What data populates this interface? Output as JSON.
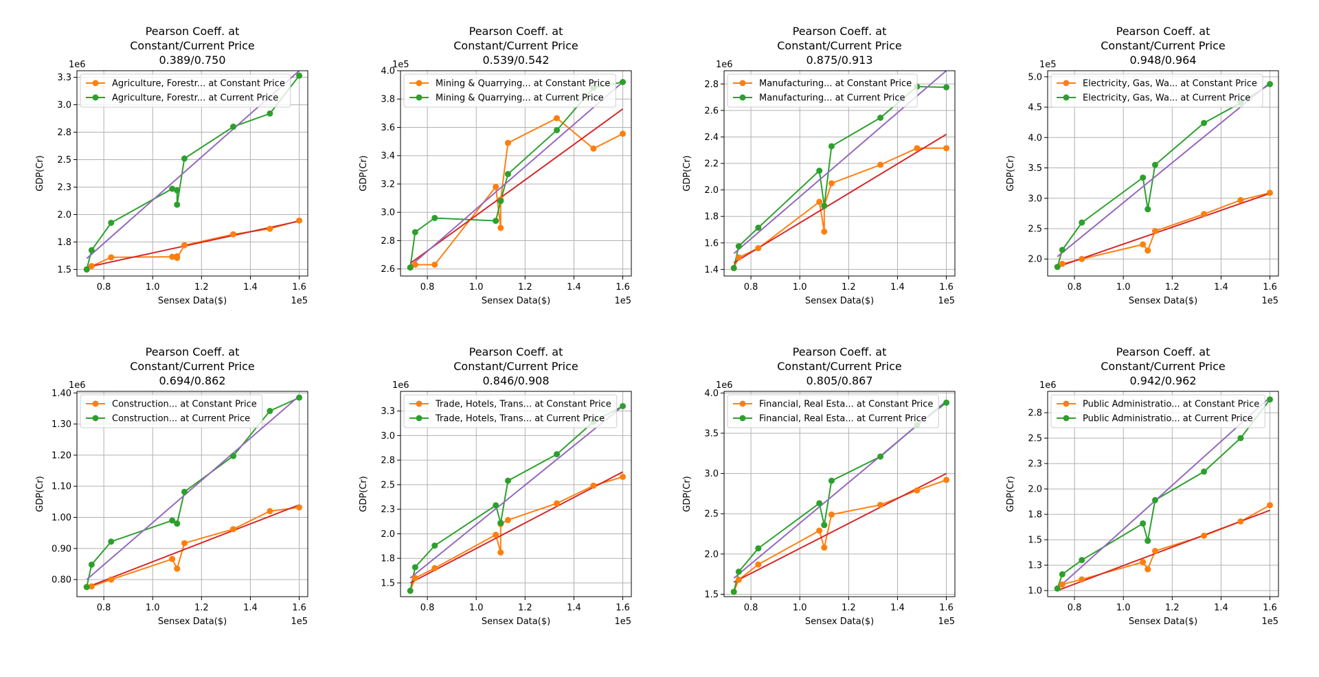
{
  "chart_data": [
    {
      "type": "line",
      "title_lines": [
        "Pearson Coeff. at",
        "Constant/Current Price",
        "0.389/0.750"
      ],
      "xlabel": "Sensex Data($)",
      "ylabel": "GDP(Cr)",
      "x_multiplier": "1e5",
      "y_multiplier": "1e6",
      "xlim": [
        0.69,
        1.635
      ],
      "ylim": [
        1.44,
        3.31
      ],
      "xticks": [
        0.8,
        1.0,
        1.2,
        1.4,
        1.6
      ],
      "yticks": [
        1.5,
        1.75,
        2.0,
        2.25,
        2.5,
        2.75,
        3.0,
        3.25
      ],
      "grid": true,
      "legend_position": "upper-left",
      "x": [
        0.73,
        0.75,
        0.83,
        1.08,
        1.1,
        1.1,
        1.13,
        1.33,
        1.48,
        1.6
      ],
      "series": [
        {
          "name": "Agriculture, Forestr... at Constant Price",
          "color": "#ff7f0e",
          "values": [
            1.5,
            1.53,
            1.61,
            1.615,
            1.62,
            1.605,
            1.72,
            1.82,
            1.87,
            1.945
          ]
        },
        {
          "name": "Agriculture, Forestr... at Current Price",
          "color": "#2ca02c",
          "values": [
            1.5,
            1.675,
            1.925,
            2.235,
            2.22,
            2.09,
            2.51,
            2.8,
            2.92,
            3.265
          ]
        }
      ],
      "fit_lines": [
        {
          "color": "#d62728",
          "x": [
            0.73,
            1.6
          ],
          "y": [
            1.52,
            1.94
          ]
        },
        {
          "color": "#9467bd",
          "x": [
            0.73,
            1.6
          ],
          "y": [
            1.6,
            3.31
          ]
        }
      ]
    },
    {
      "type": "line",
      "title_lines": [
        "Pearson Coeff. at",
        "Constant/Current Price",
        "0.539/0.542"
      ],
      "xlabel": "Sensex Data($)",
      "ylabel": "GDP(Cr)",
      "x_multiplier": "1e5",
      "y_multiplier": "1e5",
      "xlim": [
        0.69,
        1.635
      ],
      "ylim": [
        2.55,
        4.0
      ],
      "xticks": [
        0.8,
        1.0,
        1.2,
        1.4,
        1.6
      ],
      "yticks": [
        2.6,
        2.8,
        3.0,
        3.2,
        3.4,
        3.6,
        3.8,
        4.0
      ],
      "grid": true,
      "legend_position": "upper-left",
      "x": [
        0.73,
        0.75,
        0.83,
        1.08,
        1.1,
        1.1,
        1.13,
        1.33,
        1.48,
        1.6
      ],
      "series": [
        {
          "name": "Mining & Quarrying... at Constant Price",
          "color": "#ff7f0e",
          "values": [
            2.61,
            2.63,
            2.63,
            3.18,
            2.89,
            3.09,
            3.49,
            3.665,
            3.45,
            3.555
          ]
        },
        {
          "name": "Mining & Quarrying... at Current Price",
          "color": "#2ca02c",
          "values": [
            2.61,
            2.86,
            2.96,
            2.94,
            3.08,
            3.08,
            3.27,
            3.58,
            3.88,
            3.92
          ]
        }
      ],
      "fit_lines": [
        {
          "color": "#d62728",
          "x": [
            0.73,
            1.6
          ],
          "y": [
            2.64,
            3.73
          ]
        },
        {
          "color": "#9467bd",
          "x": [
            0.73,
            1.6
          ],
          "y": [
            2.62,
            3.92
          ]
        }
      ]
    },
    {
      "type": "line",
      "title_lines": [
        "Pearson Coeff. at",
        "Constant/Current Price",
        "0.875/0.913"
      ],
      "xlabel": "Sensex Data($)",
      "ylabel": "GDP(Cr)",
      "x_multiplier": "1e5",
      "y_multiplier": "1e6",
      "xlim": [
        0.69,
        1.635
      ],
      "ylim": [
        1.35,
        2.9
      ],
      "xticks": [
        0.8,
        1.0,
        1.2,
        1.4,
        1.6
      ],
      "yticks": [
        1.4,
        1.6,
        1.8,
        2.0,
        2.2,
        2.4,
        2.6,
        2.8
      ],
      "grid": true,
      "legend_position": "upper-left",
      "x": [
        0.73,
        0.75,
        0.83,
        1.08,
        1.1,
        1.1,
        1.13,
        1.33,
        1.48,
        1.6
      ],
      "series": [
        {
          "name": "Manufacturing... at Constant Price",
          "color": "#ff7f0e",
          "values": [
            1.41,
            1.49,
            1.56,
            1.91,
            1.685,
            1.88,
            2.05,
            2.19,
            2.315,
            2.315
          ]
        },
        {
          "name": "Manufacturing... at Current Price",
          "color": "#2ca02c",
          "values": [
            1.41,
            1.575,
            1.715,
            2.145,
            1.88,
            1.88,
            2.33,
            2.545,
            2.78,
            2.775
          ]
        }
      ],
      "fit_lines": [
        {
          "color": "#d62728",
          "x": [
            0.73,
            1.6
          ],
          "y": [
            1.45,
            2.42
          ]
        },
        {
          "color": "#9467bd",
          "x": [
            0.73,
            1.6
          ],
          "y": [
            1.52,
            2.9
          ]
        }
      ]
    },
    {
      "type": "line",
      "title_lines": [
        "Pearson Coeff. at",
        "Constant/Current Price",
        "0.948/0.964"
      ],
      "xlabel": "Sensex Data($)",
      "ylabel": "GDP(Cr)",
      "x_multiplier": "1e5",
      "y_multiplier": "1e5",
      "xlim": [
        0.69,
        1.635
      ],
      "ylim": [
        1.72,
        5.1
      ],
      "xticks": [
        0.8,
        1.0,
        1.2,
        1.4,
        1.6
      ],
      "yticks": [
        2.0,
        2.5,
        3.0,
        3.5,
        4.0,
        4.5,
        5.0
      ],
      "grid": true,
      "legend_position": "upper-left",
      "x": [
        0.73,
        0.75,
        0.83,
        1.08,
        1.1,
        1.1,
        1.13,
        1.33,
        1.48,
        1.6
      ],
      "series": [
        {
          "name": "Electricity, Gas, Wa... at Constant Price",
          "color": "#ff7f0e",
          "values": [
            1.87,
            1.92,
            2.0,
            2.24,
            2.14,
            2.14,
            2.46,
            2.74,
            2.97,
            3.09
          ]
        },
        {
          "name": "Electricity, Gas, Wa... at Current Price",
          "color": "#2ca02c",
          "values": [
            1.87,
            2.15,
            2.6,
            3.34,
            2.82,
            2.82,
            3.55,
            4.24,
            4.57,
            4.88
          ]
        }
      ],
      "fit_lines": [
        {
          "color": "#d62728",
          "x": [
            0.73,
            1.6
          ],
          "y": [
            1.87,
            3.08
          ]
        },
        {
          "color": "#9467bd",
          "x": [
            0.73,
            1.6
          ],
          "y": [
            2.04,
            4.9
          ]
        }
      ]
    },
    {
      "type": "line",
      "title_lines": [
        "Pearson Coeff. at",
        "Constant/Current Price",
        "0.694/0.862"
      ],
      "xlabel": "Sensex Data($)",
      "ylabel": "GDP(Cr)",
      "x_multiplier": "1e5",
      "y_multiplier": "1e6",
      "xlim": [
        0.69,
        1.635
      ],
      "ylim": [
        0.745,
        1.405
      ],
      "xticks": [
        0.8,
        1.0,
        1.2,
        1.4,
        1.6
      ],
      "yticks": [
        0.8,
        0.9,
        1.0,
        1.1,
        1.2,
        1.3,
        1.4
      ],
      "grid": true,
      "legend_position": "upper-left",
      "x": [
        0.73,
        0.75,
        0.83,
        1.08,
        1.1,
        1.1,
        1.13,
        1.33,
        1.48,
        1.6
      ],
      "series": [
        {
          "name": "Construction... at Constant Price",
          "color": "#ff7f0e",
          "values": [
            0.776,
            0.778,
            0.8,
            0.866,
            0.835,
            0.835,
            0.917,
            0.962,
            1.02,
            1.032
          ]
        },
        {
          "name": "Construction... at Current Price",
          "color": "#2ca02c",
          "values": [
            0.776,
            0.848,
            0.922,
            0.99,
            0.98,
            0.98,
            1.082,
            1.197,
            1.342,
            1.385
          ]
        }
      ],
      "fit_lines": [
        {
          "color": "#d62728",
          "x": [
            0.73,
            1.6
          ],
          "y": [
            0.775,
            1.04
          ]
        },
        {
          "color": "#9467bd",
          "x": [
            0.73,
            1.6
          ],
          "y": [
            0.8,
            1.39
          ]
        }
      ]
    },
    {
      "type": "line",
      "title_lines": [
        "Pearson Coeff. at",
        "Constant/Current Price",
        "0.846/0.908"
      ],
      "xlabel": "Sensex Data($)",
      "ylabel": "GDP(Cr)",
      "x_multiplier": "1e5",
      "y_multiplier": "1e6",
      "xlim": [
        0.69,
        1.635
      ],
      "ylim": [
        1.36,
        3.45
      ],
      "xticks": [
        0.8,
        1.0,
        1.2,
        1.4,
        1.6
      ],
      "yticks": [
        1.5,
        1.75,
        2.0,
        2.25,
        2.5,
        2.75,
        3.0,
        3.25
      ],
      "grid": true,
      "legend_position": "upper-left",
      "x": [
        0.73,
        0.75,
        0.83,
        1.08,
        1.1,
        1.1,
        1.13,
        1.33,
        1.48,
        1.6
      ],
      "series": [
        {
          "name": "Trade, Hotels, Trans... at Constant Price",
          "color": "#ff7f0e",
          "values": [
            1.42,
            1.55,
            1.65,
            1.99,
            1.81,
            2.1,
            2.14,
            2.31,
            2.49,
            2.58
          ]
        },
        {
          "name": "Trade, Hotels, Trans... at Current Price",
          "color": "#2ca02c",
          "values": [
            1.42,
            1.66,
            1.88,
            2.29,
            2.11,
            2.11,
            2.54,
            2.81,
            3.14,
            3.3
          ]
        }
      ],
      "fit_lines": [
        {
          "color": "#d62728",
          "x": [
            0.73,
            1.6
          ],
          "y": [
            1.5,
            2.63
          ]
        },
        {
          "color": "#9467bd",
          "x": [
            0.73,
            1.6
          ],
          "y": [
            1.55,
            3.3
          ]
        }
      ]
    },
    {
      "type": "line",
      "title_lines": [
        "Pearson Coeff. at",
        "Constant/Current Price",
        "0.805/0.867"
      ],
      "xlabel": "Sensex Data($)",
      "ylabel": "GDP(Cr)",
      "x_multiplier": "1e5",
      "y_multiplier": "1e6",
      "xlim": [
        0.69,
        1.635
      ],
      "ylim": [
        1.47,
        4.02
      ],
      "xticks": [
        0.8,
        1.0,
        1.2,
        1.4,
        1.6
      ],
      "yticks": [
        1.5,
        2.0,
        2.5,
        3.0,
        3.5,
        4.0
      ],
      "grid": true,
      "legend_position": "upper-left",
      "x": [
        0.73,
        0.75,
        0.83,
        1.08,
        1.1,
        1.1,
        1.13,
        1.33,
        1.48,
        1.6
      ],
      "series": [
        {
          "name": "Financial, Real Esta... at Constant Price",
          "color": "#ff7f0e",
          "values": [
            1.53,
            1.68,
            1.87,
            2.29,
            2.08,
            2.08,
            2.49,
            2.61,
            2.79,
            2.92
          ]
        },
        {
          "name": "Financial, Real Esta... at Current Price",
          "color": "#2ca02c",
          "values": [
            1.53,
            1.78,
            2.07,
            2.63,
            2.36,
            2.36,
            2.91,
            3.21,
            3.6,
            3.88
          ]
        }
      ],
      "fit_lines": [
        {
          "color": "#d62728",
          "x": [
            0.73,
            1.6
          ],
          "y": [
            1.65,
            3.0
          ]
        },
        {
          "color": "#9467bd",
          "x": [
            0.73,
            1.6
          ],
          "y": [
            1.7,
            3.9
          ]
        }
      ]
    },
    {
      "type": "line",
      "title_lines": [
        "Pearson Coeff. at",
        "Constant/Current Price",
        "0.942/0.962"
      ],
      "xlabel": "Sensex Data($)",
      "ylabel": "GDP(Cr)",
      "x_multiplier": "1e5",
      "y_multiplier": "1e6",
      "xlim": [
        0.69,
        1.635
      ],
      "ylim": [
        0.94,
        2.96
      ],
      "xticks": [
        0.8,
        1.0,
        1.2,
        1.4,
        1.6
      ],
      "yticks": [
        1.0,
        1.25,
        1.5,
        1.75,
        2.0,
        2.25,
        2.5,
        2.75
      ],
      "grid": true,
      "legend_position": "upper-left",
      "x": [
        0.73,
        0.75,
        0.83,
        1.08,
        1.1,
        1.1,
        1.13,
        1.33,
        1.48,
        1.6
      ],
      "series": [
        {
          "name": "Public Administratio... at Constant Price",
          "color": "#ff7f0e",
          "values": [
            1.02,
            1.06,
            1.11,
            1.28,
            1.21,
            1.21,
            1.39,
            1.54,
            1.68,
            1.84
          ]
        },
        {
          "name": "Public Administratio... at Current Price",
          "color": "#2ca02c",
          "values": [
            1.02,
            1.16,
            1.3,
            1.66,
            1.49,
            1.49,
            1.89,
            2.17,
            2.5,
            2.88
          ]
        }
      ],
      "fit_lines": [
        {
          "color": "#d62728",
          "x": [
            0.73,
            1.6
          ],
          "y": [
            1.0,
            1.79
          ]
        },
        {
          "color": "#9467bd",
          "x": [
            0.73,
            1.6
          ],
          "y": [
            1.02,
            2.9
          ]
        }
      ]
    }
  ]
}
